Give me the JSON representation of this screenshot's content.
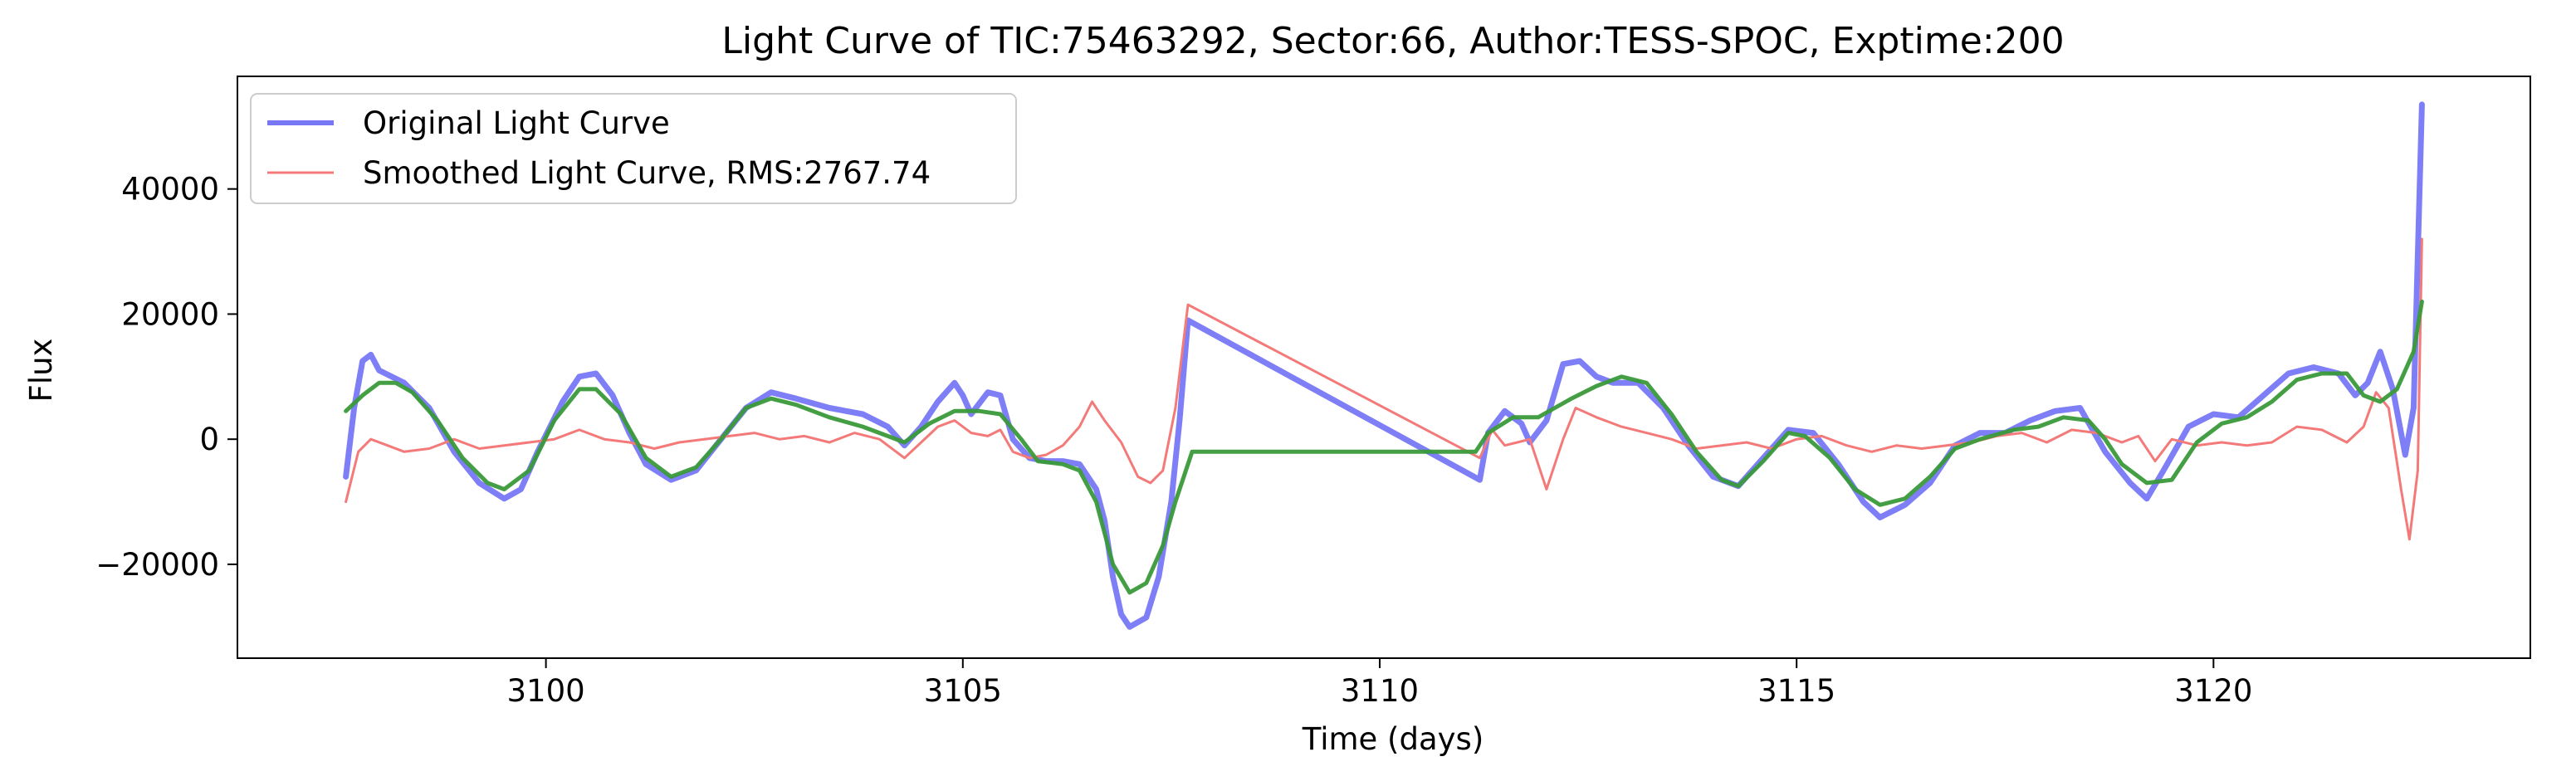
{
  "chart_data": {
    "type": "line",
    "title": "Light Curve of TIC:75463292, Sector:66, Author:TESS-SPOC, Exptime:200",
    "xlabel": "Time (days)",
    "ylabel": "Flux",
    "xlim": [
      3096.3,
      3123.8
    ],
    "ylim": [
      -35000,
      58000
    ],
    "xticks": [
      3100,
      3105,
      3110,
      3115,
      3120
    ],
    "xtick_labels": [
      "3100",
      "3105",
      "3110",
      "3115",
      "3120"
    ],
    "yticks": [
      -20000,
      0,
      20000,
      40000
    ],
    "ytick_labels": [
      "−20000",
      "0",
      "20000",
      "40000"
    ],
    "grid": false,
    "legend_placement": "top-left",
    "series": [
      {
        "name": "Original Light Curve",
        "color": "#7777f5",
        "points": [
          [
            3097.6,
            -6000
          ],
          [
            3097.7,
            5000
          ],
          [
            3097.8,
            12500
          ],
          [
            3097.9,
            13500
          ],
          [
            3098.0,
            11000
          ],
          [
            3098.3,
            9000
          ],
          [
            3098.6,
            5000
          ],
          [
            3098.9,
            -2000
          ],
          [
            3099.2,
            -7000
          ],
          [
            3099.5,
            -9500
          ],
          [
            3099.7,
            -8000
          ],
          [
            3099.9,
            -2000
          ],
          [
            3100.2,
            6000
          ],
          [
            3100.4,
            10000
          ],
          [
            3100.6,
            10500
          ],
          [
            3100.8,
            7000
          ],
          [
            3101.0,
            1000
          ],
          [
            3101.2,
            -4000
          ],
          [
            3101.5,
            -6500
          ],
          [
            3101.8,
            -5000
          ],
          [
            3102.1,
            0
          ],
          [
            3102.4,
            5000
          ],
          [
            3102.7,
            7500
          ],
          [
            3103.0,
            6500
          ],
          [
            3103.4,
            5000
          ],
          [
            3103.8,
            4000
          ],
          [
            3104.1,
            2000
          ],
          [
            3104.3,
            -1000
          ],
          [
            3104.5,
            2000
          ],
          [
            3104.7,
            6000
          ],
          [
            3104.9,
            9000
          ],
          [
            3105.0,
            7000
          ],
          [
            3105.1,
            4000
          ],
          [
            3105.3,
            7500
          ],
          [
            3105.45,
            7000
          ],
          [
            3105.6,
            0
          ],
          [
            3105.8,
            -3000
          ],
          [
            3106.0,
            -3500
          ],
          [
            3106.2,
            -3500
          ],
          [
            3106.4,
            -4000
          ],
          [
            3106.6,
            -8000
          ],
          [
            3106.7,
            -13000
          ],
          [
            3106.8,
            -22000
          ],
          [
            3106.9,
            -28000
          ],
          [
            3107.0,
            -30000
          ],
          [
            3107.2,
            -28500
          ],
          [
            3107.35,
            -22000
          ],
          [
            3107.5,
            -10000
          ],
          [
            3107.6,
            3000
          ],
          [
            3107.7,
            19000
          ],
          [
            3111.2,
            -6500
          ],
          [
            3111.3,
            1000
          ],
          [
            3111.5,
            4500
          ],
          [
            3111.7,
            2500
          ],
          [
            3111.8,
            -500
          ],
          [
            3112.0,
            3000
          ],
          [
            3112.2,
            12000
          ],
          [
            3112.4,
            12500
          ],
          [
            3112.6,
            10000
          ],
          [
            3112.8,
            9000
          ],
          [
            3113.1,
            9000
          ],
          [
            3113.4,
            5000
          ],
          [
            3113.7,
            -1000
          ],
          [
            3114.0,
            -6000
          ],
          [
            3114.3,
            -7500
          ],
          [
            3114.6,
            -3000
          ],
          [
            3114.9,
            1500
          ],
          [
            3115.2,
            1000
          ],
          [
            3115.5,
            -4000
          ],
          [
            3115.8,
            -10000
          ],
          [
            3116.0,
            -12500
          ],
          [
            3116.3,
            -10500
          ],
          [
            3116.6,
            -7000
          ],
          [
            3116.9,
            -1000
          ],
          [
            3117.2,
            1000
          ],
          [
            3117.5,
            1000
          ],
          [
            3117.8,
            3000
          ],
          [
            3118.1,
            4500
          ],
          [
            3118.4,
            5000
          ],
          [
            3118.7,
            -2000
          ],
          [
            3119.0,
            -7000
          ],
          [
            3119.2,
            -9500
          ],
          [
            3119.4,
            -5000
          ],
          [
            3119.7,
            2000
          ],
          [
            3120.0,
            4000
          ],
          [
            3120.3,
            3500
          ],
          [
            3120.6,
            7000
          ],
          [
            3120.9,
            10500
          ],
          [
            3121.2,
            11500
          ],
          [
            3121.5,
            10500
          ],
          [
            3121.7,
            7000
          ],
          [
            3121.85,
            9000
          ],
          [
            3122.0,
            14000
          ],
          [
            3122.15,
            8000
          ],
          [
            3122.3,
            -2500
          ],
          [
            3122.4,
            5000
          ],
          [
            3122.5,
            53500
          ]
        ]
      },
      {
        "name": "Smoothed Light Curve, RMS:2767.74",
        "color": "#f47a7a",
        "points": [
          [
            3097.6,
            -10000
          ],
          [
            3097.75,
            -2000
          ],
          [
            3097.9,
            0
          ],
          [
            3098.1,
            -1000
          ],
          [
            3098.3,
            -2000
          ],
          [
            3098.6,
            -1500
          ],
          [
            3098.9,
            0
          ],
          [
            3099.2,
            -1500
          ],
          [
            3099.5,
            -1000
          ],
          [
            3099.8,
            -500
          ],
          [
            3100.1,
            0
          ],
          [
            3100.4,
            1500
          ],
          [
            3100.7,
            0
          ],
          [
            3101.0,
            -500
          ],
          [
            3101.3,
            -1500
          ],
          [
            3101.6,
            -500
          ],
          [
            3101.9,
            0
          ],
          [
            3102.2,
            500
          ],
          [
            3102.5,
            1000
          ],
          [
            3102.8,
            0
          ],
          [
            3103.1,
            500
          ],
          [
            3103.4,
            -500
          ],
          [
            3103.7,
            1000
          ],
          [
            3104.0,
            0
          ],
          [
            3104.3,
            -3000
          ],
          [
            3104.5,
            -500
          ],
          [
            3104.7,
            2000
          ],
          [
            3104.9,
            3000
          ],
          [
            3105.1,
            1000
          ],
          [
            3105.3,
            500
          ],
          [
            3105.45,
            1500
          ],
          [
            3105.6,
            -2000
          ],
          [
            3105.8,
            -3000
          ],
          [
            3106.0,
            -2500
          ],
          [
            3106.2,
            -1000
          ],
          [
            3106.4,
            2000
          ],
          [
            3106.55,
            6000
          ],
          [
            3106.7,
            3000
          ],
          [
            3106.9,
            -500
          ],
          [
            3107.1,
            -6000
          ],
          [
            3107.25,
            -7000
          ],
          [
            3107.4,
            -5000
          ],
          [
            3107.55,
            5000
          ],
          [
            3107.7,
            21500
          ],
          [
            3111.2,
            -3000
          ],
          [
            3111.35,
            1500
          ],
          [
            3111.5,
            -1000
          ],
          [
            3111.65,
            -500
          ],
          [
            3111.8,
            0
          ],
          [
            3112.0,
            -8000
          ],
          [
            3112.2,
            0
          ],
          [
            3112.35,
            5000
          ],
          [
            3112.6,
            3500
          ],
          [
            3112.9,
            2000
          ],
          [
            3113.2,
            1000
          ],
          [
            3113.5,
            0
          ],
          [
            3113.8,
            -1500
          ],
          [
            3114.1,
            -1000
          ],
          [
            3114.4,
            -500
          ],
          [
            3114.7,
            -1500
          ],
          [
            3115.0,
            0
          ],
          [
            3115.3,
            500
          ],
          [
            3115.6,
            -1000
          ],
          [
            3115.9,
            -2000
          ],
          [
            3116.2,
            -1000
          ],
          [
            3116.5,
            -1500
          ],
          [
            3116.8,
            -1000
          ],
          [
            3117.1,
            -500
          ],
          [
            3117.4,
            500
          ],
          [
            3117.7,
            1000
          ],
          [
            3118.0,
            -500
          ],
          [
            3118.3,
            1500
          ],
          [
            3118.6,
            1000
          ],
          [
            3118.9,
            -500
          ],
          [
            3119.1,
            500
          ],
          [
            3119.3,
            -3500
          ],
          [
            3119.5,
            0
          ],
          [
            3119.8,
            -1000
          ],
          [
            3120.1,
            -500
          ],
          [
            3120.4,
            -1000
          ],
          [
            3120.7,
            -500
          ],
          [
            3121.0,
            2000
          ],
          [
            3121.3,
            1500
          ],
          [
            3121.6,
            -500
          ],
          [
            3121.8,
            2000
          ],
          [
            3121.95,
            7500
          ],
          [
            3122.1,
            5000
          ],
          [
            3122.25,
            -8000
          ],
          [
            3122.35,
            -16000
          ],
          [
            3122.45,
            -5000
          ],
          [
            3122.5,
            32000
          ]
        ]
      },
      {
        "name": "",
        "color": "#3a9a3a",
        "points": [
          [
            3097.6,
            4500
          ],
          [
            3097.8,
            7000
          ],
          [
            3098.0,
            9000
          ],
          [
            3098.2,
            9000
          ],
          [
            3098.4,
            7500
          ],
          [
            3098.7,
            3000
          ],
          [
            3099.0,
            -3000
          ],
          [
            3099.3,
            -7000
          ],
          [
            3099.5,
            -8000
          ],
          [
            3099.8,
            -5000
          ],
          [
            3100.1,
            3000
          ],
          [
            3100.4,
            8000
          ],
          [
            3100.6,
            8000
          ],
          [
            3100.9,
            4000
          ],
          [
            3101.2,
            -3000
          ],
          [
            3101.5,
            -6000
          ],
          [
            3101.8,
            -4500
          ],
          [
            3102.1,
            0
          ],
          [
            3102.4,
            5000
          ],
          [
            3102.7,
            6500
          ],
          [
            3103.0,
            5500
          ],
          [
            3103.4,
            3500
          ],
          [
            3103.8,
            2000
          ],
          [
            3104.1,
            500
          ],
          [
            3104.3,
            -500
          ],
          [
            3104.6,
            2500
          ],
          [
            3104.9,
            4500
          ],
          [
            3105.2,
            4500
          ],
          [
            3105.45,
            4000
          ],
          [
            3105.7,
            0
          ],
          [
            3105.9,
            -3500
          ],
          [
            3106.2,
            -4000
          ],
          [
            3106.4,
            -5000
          ],
          [
            3106.6,
            -10000
          ],
          [
            3106.8,
            -20000
          ],
          [
            3107.0,
            -24500
          ],
          [
            3107.2,
            -23000
          ],
          [
            3107.4,
            -17000
          ],
          [
            3107.55,
            -10000
          ],
          [
            3107.75,
            -2000
          ],
          [
            3111.15,
            -2000
          ],
          [
            3111.3,
            1000
          ],
          [
            3111.6,
            3500
          ],
          [
            3111.9,
            3500
          ],
          [
            3112.1,
            5000
          ],
          [
            3112.3,
            6500
          ],
          [
            3112.6,
            8500
          ],
          [
            3112.9,
            10000
          ],
          [
            3113.2,
            9000
          ],
          [
            3113.5,
            4000
          ],
          [
            3113.8,
            -2000
          ],
          [
            3114.1,
            -6500
          ],
          [
            3114.3,
            -7500
          ],
          [
            3114.6,
            -3500
          ],
          [
            3114.9,
            1000
          ],
          [
            3115.1,
            500
          ],
          [
            3115.4,
            -3000
          ],
          [
            3115.7,
            -8000
          ],
          [
            3116.0,
            -10500
          ],
          [
            3116.3,
            -9500
          ],
          [
            3116.6,
            -6000
          ],
          [
            3116.9,
            -1500
          ],
          [
            3117.2,
            0
          ],
          [
            3117.6,
            1500
          ],
          [
            3117.9,
            2000
          ],
          [
            3118.2,
            3500
          ],
          [
            3118.5,
            3000
          ],
          [
            3118.7,
            0
          ],
          [
            3118.9,
            -4000
          ],
          [
            3119.2,
            -7000
          ],
          [
            3119.5,
            -6500
          ],
          [
            3119.8,
            -500
          ],
          [
            3120.1,
            2500
          ],
          [
            3120.4,
            3500
          ],
          [
            3120.7,
            6000
          ],
          [
            3121.0,
            9500
          ],
          [
            3121.3,
            10500
          ],
          [
            3121.6,
            10500
          ],
          [
            3121.8,
            7000
          ],
          [
            3122.0,
            6000
          ],
          [
            3122.2,
            8000
          ],
          [
            3122.4,
            14000
          ],
          [
            3122.5,
            22000
          ]
        ]
      }
    ]
  }
}
